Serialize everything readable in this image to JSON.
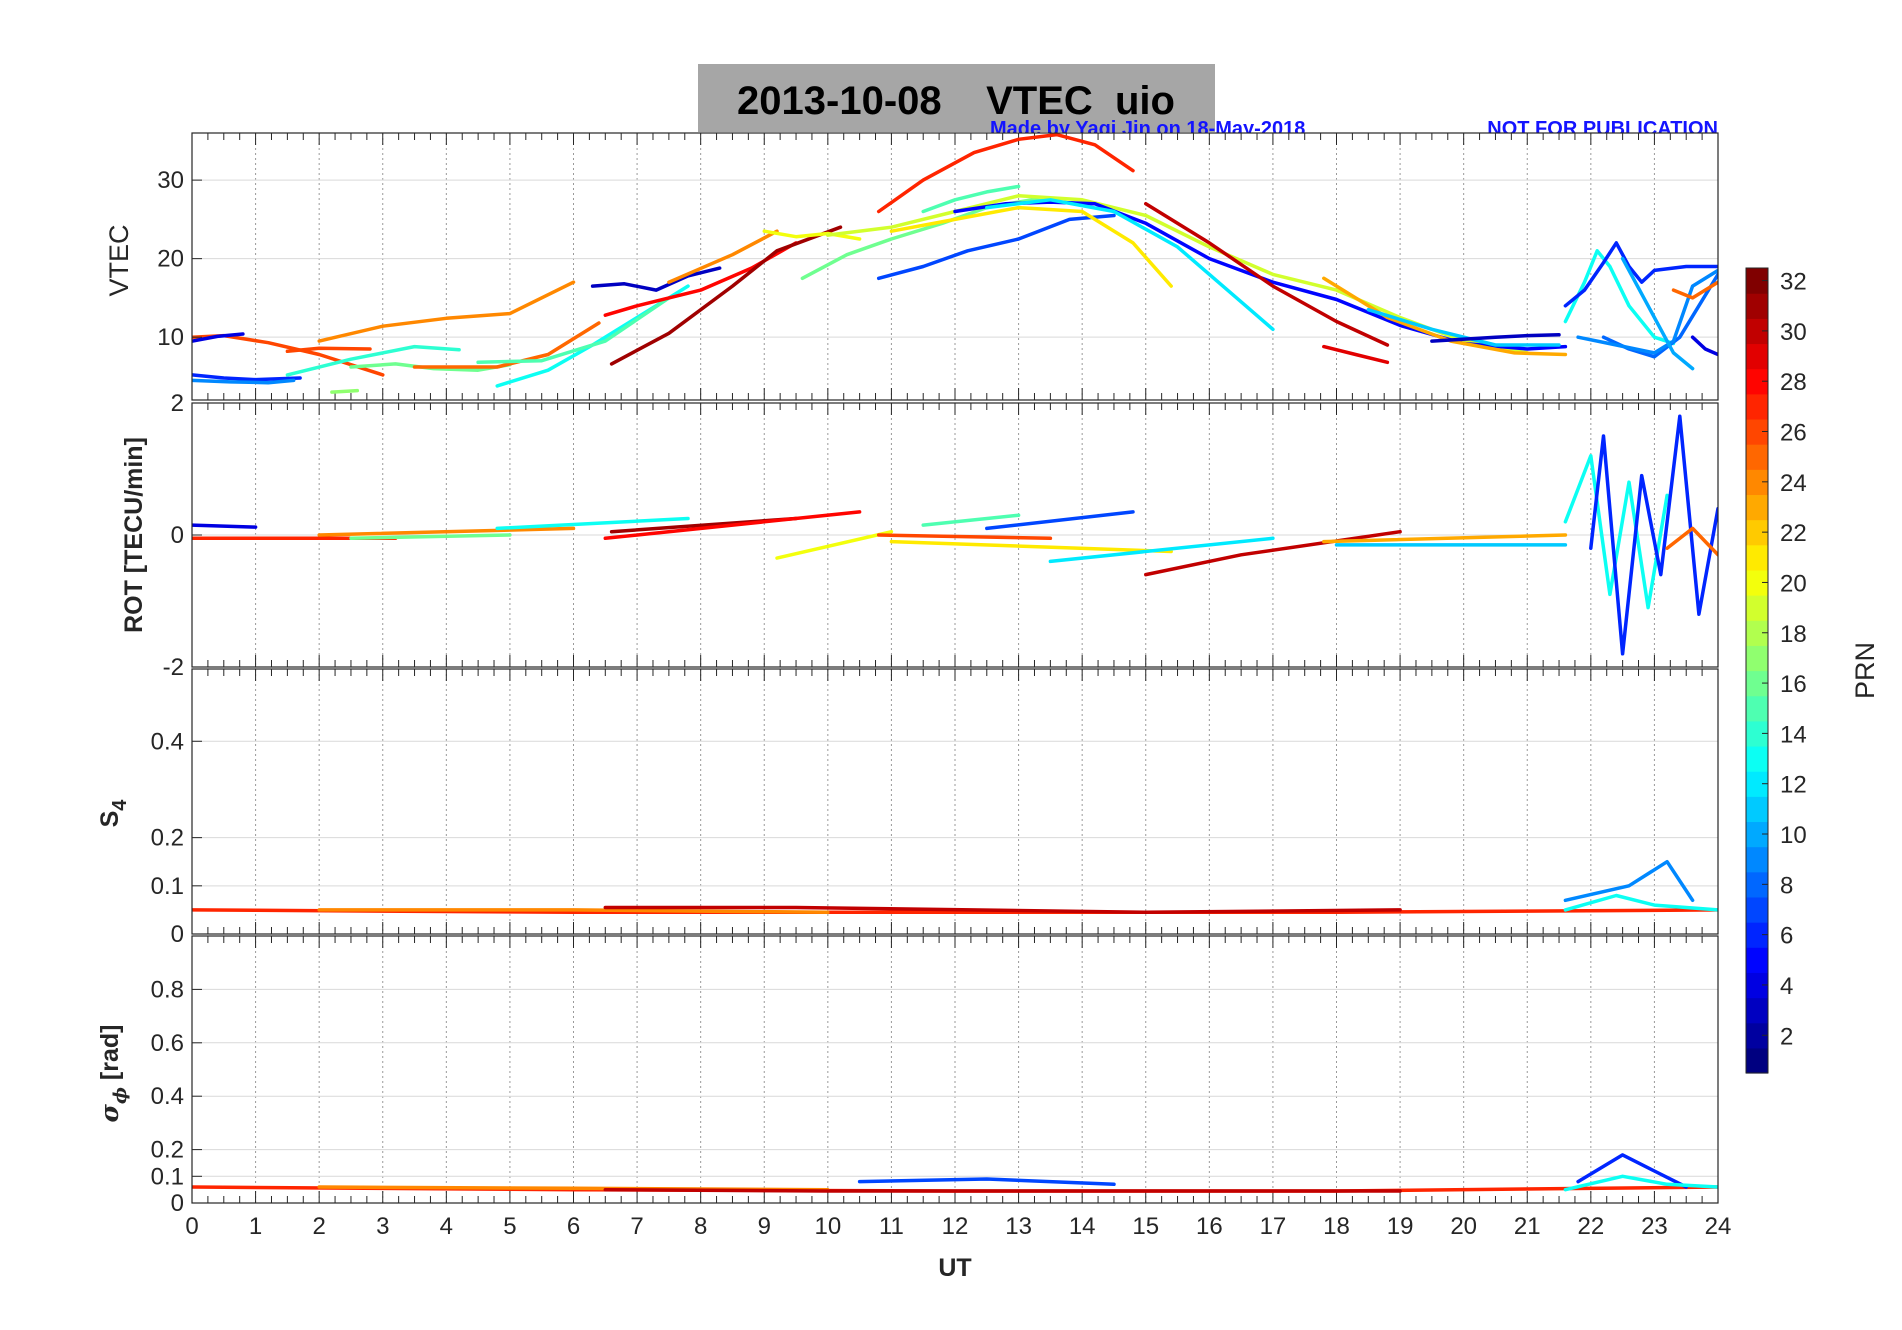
{
  "header": {
    "title": "2013-10-08    VTEC  uio",
    "credit_left": "Made by Yaqi Jin on 18-May-2018",
    "credit_right": "NOT FOR PUBLICATION"
  },
  "colorbar": {
    "label": "PRN",
    "range": [
      1,
      32
    ],
    "ticks": [
      "2",
      "4",
      "6",
      "8",
      "10",
      "12",
      "14",
      "16",
      "18",
      "20",
      "22",
      "24",
      "26",
      "28",
      "30",
      "32"
    ],
    "colormap": "jet"
  },
  "chart_data": [
    {
      "type": "line",
      "ylabel": "VTEC",
      "ylim": [
        2,
        36
      ],
      "yticks": [
        "10",
        "20",
        "30"
      ],
      "x_range": [
        0,
        24
      ],
      "grid": true,
      "series": [
        {
          "prn": 6,
          "x": [
            0,
            0.5,
            1.0,
            1.7
          ],
          "y": [
            5.2,
            4.8,
            4.6,
            4.8
          ]
        },
        {
          "prn": 9,
          "x": [
            0,
            0.6,
            1.2,
            1.6
          ],
          "y": [
            4.5,
            4.3,
            4.2,
            4.5
          ]
        },
        {
          "prn": 26,
          "x": [
            0,
            0.5,
            1.2,
            2.0,
            3.0
          ],
          "y": [
            10,
            10.2,
            9.3,
            7.8,
            5.2
          ]
        },
        {
          "prn": 4,
          "x": [
            0,
            0.4,
            0.8
          ],
          "y": [
            9.5,
            10.1,
            10.4
          ]
        },
        {
          "prn": 26,
          "x": [
            1.5,
            2.0,
            2.8
          ],
          "y": [
            8.2,
            8.6,
            8.5
          ]
        },
        {
          "prn": 24,
          "x": [
            2.0,
            3.0,
            4.0,
            5.0,
            6.0
          ],
          "y": [
            9.5,
            11.4,
            12.4,
            13.0,
            17.0
          ]
        },
        {
          "prn": 16,
          "x": [
            2.5,
            3.2,
            3.8,
            4.5,
            5.0
          ],
          "y": [
            6.2,
            6.6,
            6.0,
            5.8,
            6.5
          ]
        },
        {
          "prn": 17,
          "x": [
            2.2,
            2.6
          ],
          "y": [
            3.0,
            3.2
          ]
        },
        {
          "prn": 14,
          "x": [
            1.5,
            2.5,
            3.5,
            4.2
          ],
          "y": [
            5.2,
            7.2,
            8.8,
            8.4
          ]
        },
        {
          "prn": 25,
          "x": [
            3.5,
            4.8,
            5.6,
            6.4
          ],
          "y": [
            6.2,
            6.2,
            7.8,
            11.8
          ]
        },
        {
          "prn": 13,
          "x": [
            4.8,
            5.6,
            6.3,
            7.0,
            7.8
          ],
          "y": [
            3.8,
            5.8,
            9.0,
            12.5,
            16.5
          ]
        },
        {
          "prn": 15,
          "x": [
            4.5,
            5.5,
            6.5,
            7.5
          ],
          "y": [
            6.8,
            7.0,
            9.5,
            15.0
          ]
        },
        {
          "prn": 3,
          "x": [
            6.3,
            6.8,
            7.3,
            7.8,
            8.3
          ],
          "y": [
            16.5,
            16.8,
            16.0,
            17.8,
            18.8
          ]
        },
        {
          "prn": 28,
          "x": [
            6.5,
            7.0,
            8.0,
            8.8,
            9.5
          ],
          "y": [
            12.8,
            14.0,
            16.0,
            18.8,
            22.0
          ]
        },
        {
          "prn": 31,
          "x": [
            6.6,
            7.5,
            8.5,
            9.2,
            10.2
          ],
          "y": [
            6.6,
            10.5,
            16.5,
            21.0,
            24.0
          ]
        },
        {
          "prn": 24,
          "x": [
            7.5,
            8.5,
            9.2
          ],
          "y": [
            17.0,
            20.5,
            23.5
          ]
        },
        {
          "prn": 20,
          "x": [
            9.0,
            9.5,
            10.0,
            10.5
          ],
          "y": [
            23.5,
            22.8,
            23.2,
            22.5
          ]
        },
        {
          "prn": 16,
          "x": [
            9.6,
            10.3,
            11.0,
            11.8,
            12.5,
            13.2,
            14.0
          ],
          "y": [
            17.5,
            20.5,
            22.5,
            24.5,
            26.5,
            27.5,
            27.0
          ]
        },
        {
          "prn": 7,
          "x": [
            10.8,
            11.5,
            12.2,
            13.0,
            13.8,
            14.5
          ],
          "y": [
            17.5,
            19.0,
            21.0,
            22.5,
            25.0,
            25.5
          ]
        },
        {
          "prn": 27,
          "x": [
            10.8,
            11.5,
            12.3,
            13.0,
            13.6,
            14.2,
            14.8
          ],
          "y": [
            26.0,
            30.0,
            33.5,
            35.2,
            35.8,
            34.5,
            31.2
          ]
        },
        {
          "prn": 15,
          "x": [
            11.5,
            12.0,
            12.5,
            13.0
          ],
          "y": [
            26.0,
            27.5,
            28.5,
            29.2
          ]
        },
        {
          "prn": 21,
          "x": [
            11.0,
            12.0,
            13.0,
            14.0,
            14.8,
            15.4
          ],
          "y": [
            23.5,
            25.0,
            26.5,
            26.0,
            22.0,
            16.5
          ]
        },
        {
          "prn": 19,
          "x": [
            10.0,
            11.0,
            12.0,
            13.0,
            14.0,
            15.0,
            16.0,
            17.0,
            18.0,
            19.0,
            20.0,
            21.0
          ],
          "y": [
            23,
            24,
            26,
            28,
            27.5,
            25.5,
            21.5,
            18,
            16,
            12.5,
            9.5,
            8
          ]
        },
        {
          "prn": 5,
          "x": [
            12.0,
            12.8,
            13.5,
            14.2,
            15.0,
            16.0,
            17.0,
            18.0,
            19.0,
            20.0,
            21.0,
            21.6
          ],
          "y": [
            26,
            27,
            27.2,
            27,
            24.5,
            20,
            17,
            14.8,
            11.5,
            9.2,
            8.5,
            8.8
          ]
        },
        {
          "prn": 12,
          "x": [
            12.5,
            13.5,
            14.5,
            15.5,
            16.5,
            17.0
          ],
          "y": [
            26.5,
            27.5,
            26.0,
            21.5,
            14.5,
            11.0
          ]
        },
        {
          "prn": 30,
          "x": [
            15.0,
            16.0,
            17.0,
            18.0,
            18.8
          ],
          "y": [
            27.0,
            22.0,
            16.5,
            12.0,
            9.0
          ]
        },
        {
          "prn": 23,
          "x": [
            17.8,
            18.8,
            19.8,
            20.8,
            21.6
          ],
          "y": [
            17.5,
            12.5,
            9.5,
            8.0,
            7.8
          ]
        },
        {
          "prn": 11,
          "x": [
            18.5,
            19.5,
            20.5,
            21.5
          ],
          "y": [
            13.5,
            11.0,
            9.0,
            9.0
          ]
        },
        {
          "prn": 3,
          "x": [
            19.5,
            20.5,
            21.0,
            21.5
          ],
          "y": [
            9.5,
            10.0,
            10.2,
            10.3
          ]
        },
        {
          "prn": 29,
          "x": [
            17.8,
            18.3,
            18.8
          ],
          "y": [
            8.8,
            7.8,
            6.8
          ]
        },
        {
          "prn": 13,
          "x": [
            21.6,
            21.9,
            22.1,
            22.3,
            22.6,
            23.0,
            23.3
          ],
          "y": [
            12.0,
            17.0,
            21.0,
            19.0,
            14.0,
            10.0,
            9.2
          ]
        },
        {
          "prn": 6,
          "x": [
            21.6,
            21.9,
            22.2,
            22.4,
            22.6,
            22.8,
            23.0,
            23.5,
            24.0
          ],
          "y": [
            14.0,
            16.0,
            19.5,
            22.0,
            19.0,
            17.0,
            18.5,
            19.0,
            19.0
          ]
        },
        {
          "prn": 8,
          "x": [
            22.2,
            22.6,
            23.0,
            23.4,
            23.7,
            24.0
          ],
          "y": [
            10.0,
            8.5,
            7.5,
            10.0,
            14.0,
            18.0
          ]
        },
        {
          "prn": 9,
          "x": [
            21.8,
            22.4,
            23.0,
            23.3,
            23.6,
            24.0
          ],
          "y": [
            10.0,
            9.0,
            8.0,
            9.5,
            16.5,
            18.5
          ]
        },
        {
          "prn": 25,
          "x": [
            23.3,
            23.6,
            24.0
          ],
          "y": [
            16.0,
            15.0,
            17.0
          ]
        },
        {
          "prn": 4,
          "x": [
            23.6,
            23.8,
            24.0
          ],
          "y": [
            10.0,
            8.5,
            7.8
          ]
        },
        {
          "prn": 10,
          "x": [
            22.5,
            22.9,
            23.3,
            23.6
          ],
          "y": [
            20.0,
            14.0,
            8.0,
            6.0
          ]
        }
      ]
    },
    {
      "type": "line",
      "ylabel": "ROT [TECU/min]",
      "ylim": [
        -2,
        2
      ],
      "yticks": [
        "-2",
        "0",
        "2"
      ],
      "x_range": [
        0,
        24
      ],
      "grid": true,
      "series": [
        {
          "prn": 4,
          "x": [
            0,
            1.0
          ],
          "y": [
            0.15,
            0.12
          ]
        },
        {
          "prn": 27,
          "x": [
            0,
            3.2
          ],
          "y": [
            -0.05,
            -0.05
          ]
        },
        {
          "prn": 24,
          "x": [
            2.0,
            6.0
          ],
          "y": [
            0.0,
            0.1
          ]
        },
        {
          "prn": 16,
          "x": [
            2.5,
            5.0
          ],
          "y": [
            -0.05,
            0.0
          ]
        },
        {
          "prn": 13,
          "x": [
            4.8,
            7.8
          ],
          "y": [
            0.1,
            0.25
          ]
        },
        {
          "prn": 31,
          "x": [
            6.6,
            9.5
          ],
          "y": [
            0.05,
            0.25
          ]
        },
        {
          "prn": 28,
          "x": [
            6.5,
            10.5
          ],
          "y": [
            -0.05,
            0.35
          ]
        },
        {
          "prn": 20,
          "x": [
            9.2,
            11.0
          ],
          "y": [
            -0.35,
            0.05
          ]
        },
        {
          "prn": 15,
          "x": [
            11.5,
            13.0
          ],
          "y": [
            0.15,
            0.3
          ]
        },
        {
          "prn": 26,
          "x": [
            10.8,
            13.5
          ],
          "y": [
            0.0,
            -0.05
          ]
        },
        {
          "prn": 7,
          "x": [
            12.5,
            14.8
          ],
          "y": [
            0.1,
            0.35
          ]
        },
        {
          "prn": 21,
          "x": [
            11.0,
            15.4
          ],
          "y": [
            -0.1,
            -0.25
          ]
        },
        {
          "prn": 12,
          "x": [
            13.5,
            17.0
          ],
          "y": [
            -0.4,
            -0.05
          ]
        },
        {
          "prn": 30,
          "x": [
            15.0,
            16.5,
            19.0
          ],
          "y": [
            -0.6,
            -0.3,
            0.05
          ]
        },
        {
          "prn": 23,
          "x": [
            17.8,
            21.6
          ],
          "y": [
            -0.1,
            0.0
          ]
        },
        {
          "prn": 11,
          "x": [
            18.0,
            21.6
          ],
          "y": [
            -0.15,
            -0.15
          ]
        },
        {
          "prn": 13,
          "x": [
            21.6,
            22.0,
            22.3,
            22.6,
            22.9,
            23.2
          ],
          "y": [
            0.2,
            1.2,
            -0.9,
            0.8,
            -1.1,
            0.6
          ]
        },
        {
          "prn": 6,
          "x": [
            22.0,
            22.2,
            22.5,
            22.8,
            23.1,
            23.4,
            23.7,
            24.0
          ],
          "y": [
            -0.2,
            1.5,
            -1.8,
            0.9,
            -0.6,
            1.8,
            -1.2,
            0.4
          ]
        },
        {
          "prn": 25,
          "x": [
            23.2,
            23.6,
            24.0
          ],
          "y": [
            -0.2,
            0.1,
            -0.3
          ]
        }
      ]
    },
    {
      "type": "line",
      "ylabel": "S4",
      "ylim": [
        0,
        0.55
      ],
      "yticks": [
        "0",
        "0.1",
        "0.2",
        "0.4"
      ],
      "x_range": [
        0,
        24
      ],
      "grid": true,
      "series": [
        {
          "prn": 27,
          "x": [
            0,
            6,
            12,
            18,
            24
          ],
          "y": [
            0.05,
            0.045,
            0.045,
            0.045,
            0.05
          ]
        },
        {
          "prn": 24,
          "x": [
            2,
            6,
            10
          ],
          "y": [
            0.05,
            0.05,
            0.045
          ]
        },
        {
          "prn": 30,
          "x": [
            6.5,
            9.5,
            15,
            19
          ],
          "y": [
            0.055,
            0.055,
            0.045,
            0.05
          ]
        },
        {
          "prn": 9,
          "x": [
            21.6,
            22.6,
            23.2,
            23.6
          ],
          "y": [
            0.07,
            0.1,
            0.15,
            0.07
          ]
        },
        {
          "prn": 13,
          "x": [
            21.6,
            22.4,
            23.0,
            24.0
          ],
          "y": [
            0.05,
            0.08,
            0.06,
            0.05
          ]
        }
      ]
    },
    {
      "type": "line",
      "ylabel": "σϕ [rad]",
      "xlabel": "UT",
      "ylim": [
        0,
        1
      ],
      "yticks": [
        "0",
        "0.1",
        "0.2",
        "0.4",
        "0.6",
        "0.8"
      ],
      "xticks": [
        "0",
        "1",
        "2",
        "3",
        "4",
        "5",
        "6",
        "7",
        "8",
        "9",
        "10",
        "11",
        "12",
        "13",
        "14",
        "15",
        "16",
        "17",
        "18",
        "19",
        "20",
        "21",
        "22",
        "23",
        "24"
      ],
      "x_range": [
        0,
        24
      ],
      "grid": true,
      "series": [
        {
          "prn": 27,
          "x": [
            0,
            6,
            12,
            18,
            24
          ],
          "y": [
            0.06,
            0.05,
            0.045,
            0.045,
            0.06
          ]
        },
        {
          "prn": 24,
          "x": [
            2,
            6,
            10
          ],
          "y": [
            0.06,
            0.055,
            0.05
          ]
        },
        {
          "prn": 30,
          "x": [
            6.5,
            10,
            15,
            19
          ],
          "y": [
            0.05,
            0.045,
            0.045,
            0.045
          ]
        },
        {
          "prn": 7,
          "x": [
            10.5,
            12.5,
            14.5
          ],
          "y": [
            0.08,
            0.09,
            0.07
          ]
        },
        {
          "prn": 6,
          "x": [
            21.8,
            22.5,
            23.0,
            23.5
          ],
          "y": [
            0.08,
            0.18,
            0.12,
            0.06
          ]
        },
        {
          "prn": 13,
          "x": [
            21.6,
            22.5,
            23.2,
            24.0
          ],
          "y": [
            0.05,
            0.1,
            0.07,
            0.06
          ]
        }
      ]
    }
  ]
}
